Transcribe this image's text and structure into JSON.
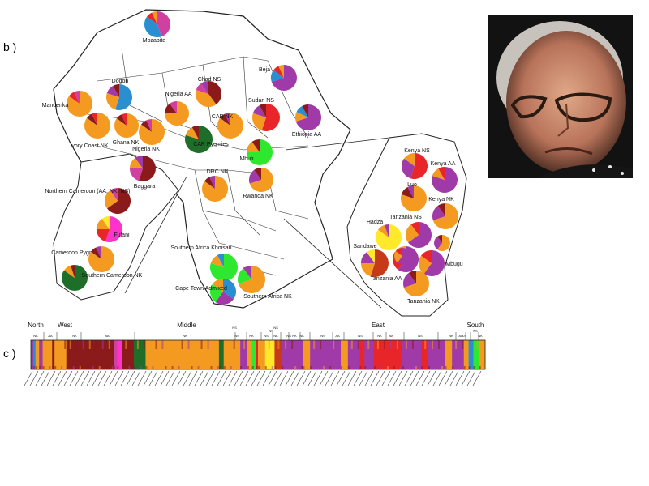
{
  "panel_labels": {
    "b": "b )",
    "c": "c )"
  },
  "pies": [
    {
      "label": "Mozabite",
      "colors": [
        "#d040a0",
        "#2a8fd0",
        "#e8262a",
        "#f49a20"
      ],
      "values": [
        45,
        40,
        8,
        7
      ]
    },
    {
      "label": "Beja",
      "colors": [
        "#a03aa8",
        "#2a8fd0",
        "#e8262a",
        "#f49a20"
      ],
      "values": [
        70,
        15,
        8,
        7
      ]
    },
    {
      "label": "Dogon",
      "colors": [
        "#2a8fd0",
        "#f49a20",
        "#a03aa8",
        "#8b1a1a"
      ],
      "values": [
        55,
        25,
        12,
        8
      ]
    },
    {
      "label": "Chad NS",
      "colors": [
        "#8b1a1a",
        "#f49a20",
        "#d040a0",
        "#a03aa8"
      ],
      "values": [
        40,
        40,
        10,
        10
      ]
    },
    {
      "label": "Mandenka",
      "colors": [
        "#f49a20",
        "#e8262a",
        "#d040a0"
      ],
      "values": [
        85,
        8,
        7
      ]
    },
    {
      "label": "Nigeria AA",
      "colors": [
        "#f49a20",
        "#8b1a1a",
        "#d040a0"
      ],
      "values": [
        75,
        15,
        10
      ]
    },
    {
      "label": "Sudan NS",
      "colors": [
        "#e8262a",
        "#f49a20",
        "#a03aa8",
        "#8b1a1a"
      ],
      "values": [
        55,
        25,
        12,
        8
      ]
    },
    {
      "label": "Ethiopia AA",
      "colors": [
        "#a03aa8",
        "#f49a20",
        "#2a8fd0",
        "#8b1a1a"
      ],
      "values": [
        70,
        12,
        10,
        8
      ]
    },
    {
      "label": "Ghana NK",
      "colors": [
        "#f49a20",
        "#8b1a1a",
        "#e8262a"
      ],
      "values": [
        85,
        8,
        7
      ]
    },
    {
      "label": "Ivory Coast NK",
      "colors": [
        "#f49a20",
        "#8b1a1a",
        "#e8262a"
      ],
      "values": [
        85,
        8,
        7
      ]
    },
    {
      "label": "Nigeria NK",
      "colors": [
        "#f49a20",
        "#8b1a1a",
        "#d040a0"
      ],
      "values": [
        85,
        8,
        7
      ]
    },
    {
      "label": "CAR NK",
      "colors": [
        "#f49a20",
        "#8b1a1a",
        "#a03aa8"
      ],
      "values": [
        85,
        8,
        7
      ]
    },
    {
      "label": "CAR Pygmies",
      "colors": [
        "#1e6e2a",
        "#f49a20",
        "#8b1a1a"
      ],
      "values": [
        80,
        12,
        8
      ]
    },
    {
      "label": "Mbuti",
      "colors": [
        "#2ee82e",
        "#f49a20",
        "#8b1a1a"
      ],
      "values": [
        75,
        15,
        10
      ]
    },
    {
      "label": "Baggara",
      "colors": [
        "#8b1a1a",
        "#d040a0",
        "#f49a20",
        "#a03aa8"
      ],
      "values": [
        55,
        20,
        15,
        10
      ]
    },
    {
      "label": "DRC NK",
      "colors": [
        "#f49a20",
        "#8b1a1a",
        "#a03aa8"
      ],
      "values": [
        85,
        8,
        7
      ]
    },
    {
      "label": "Rwanda NK",
      "colors": [
        "#f49a20",
        "#a03aa8",
        "#8b1a1a"
      ],
      "values": [
        70,
        20,
        10
      ]
    },
    {
      "label": "Northern Cameroon (AA, NK, NS)",
      "colors": [
        "#8b1a1a",
        "#f49a20",
        "#d040a0"
      ],
      "values": [
        65,
        25,
        10
      ]
    },
    {
      "label": "Fulani",
      "colors": [
        "#ff33cc",
        "#e8262a",
        "#f49a20",
        "#ffe92a"
      ],
      "values": [
        55,
        20,
        15,
        10
      ]
    },
    {
      "label": "Cameroon Pygmies",
      "colors": [
        "#1e6e2a",
        "#f49a20",
        "#8b1a1a"
      ],
      "values": [
        85,
        10,
        5
      ]
    },
    {
      "label": "Southern Cameroon NK",
      "colors": [
        "#f49a20",
        "#8b1a1a",
        "#a03aa8"
      ],
      "values": [
        85,
        8,
        7
      ]
    },
    {
      "label": "Southern Africa Khoisan",
      "colors": [
        "#2ee82e",
        "#f49a20",
        "#2a8fd0"
      ],
      "values": [
        80,
        12,
        8
      ]
    },
    {
      "label": "Cape Town Admixed",
      "colors": [
        "#2a8fd0",
        "#a03aa8",
        "#2ee82e",
        "#f49a20"
      ],
      "values": [
        35,
        25,
        25,
        15
      ]
    },
    {
      "label": "Southern Africa NK",
      "colors": [
        "#f49a20",
        "#2ee82e",
        "#a03aa8"
      ],
      "values": [
        70,
        20,
        10
      ]
    },
    {
      "label": "Kenya NS",
      "colors": [
        "#e8262a",
        "#a03aa8",
        "#f49a20"
      ],
      "values": [
        55,
        30,
        15
      ]
    },
    {
      "label": "Kenya AA",
      "colors": [
        "#a03aa8",
        "#f49a20",
        "#e8262a"
      ],
      "values": [
        80,
        12,
        8
      ]
    },
    {
      "label": "Luo",
      "colors": [
        "#f49a20",
        "#8b1a1a",
        "#a03aa8"
      ],
      "values": [
        80,
        12,
        8
      ]
    },
    {
      "label": "Kenya NK",
      "colors": [
        "#f49a20",
        "#a03aa8",
        "#8b1a1a"
      ],
      "values": [
        70,
        20,
        10
      ]
    },
    {
      "label": "Hadza",
      "colors": [
        "#ffe92a",
        "#f49a20",
        "#a03aa8"
      ],
      "values": [
        85,
        10,
        5
      ]
    },
    {
      "label": "Tanzania NS",
      "colors": [
        "#a03aa8",
        "#f49a20",
        "#e8262a"
      ],
      "values": [
        65,
        25,
        10
      ]
    },
    {
      "label": "Sandawe",
      "colors": [
        "#c63a1a",
        "#f49a20",
        "#a03aa8",
        "#ffe92a"
      ],
      "values": [
        55,
        20,
        15,
        10
      ]
    },
    {
      "label": "Tanzania AA",
      "colors": [
        "#a03aa8",
        "#e8262a",
        "#f49a20"
      ],
      "values": [
        60,
        25,
        15
      ]
    },
    {
      "label": "Mbugu",
      "colors": [
        "#a03aa8",
        "#f49a20",
        "#e8262a"
      ],
      "values": [
        60,
        25,
        15
      ]
    },
    {
      "label": "Tanzania NK",
      "colors": [
        "#f49a20",
        "#a03aa8",
        "#8b1a1a"
      ],
      "values": [
        70,
        20,
        10
      ]
    },
    {
      "label": "",
      "colors": [
        "#a03aa8",
        "#f49a20",
        "#e8262a"
      ],
      "values": [
        60,
        25,
        15
      ]
    },
    {
      "label": "",
      "colors": [
        "#f49a20",
        "#a03aa8",
        "#8b1a1a"
      ],
      "values": [
        60,
        30,
        10
      ]
    }
  ],
  "bar_plot": {
    "regions": [
      "North",
      "West",
      "Middle",
      "East",
      "South"
    ],
    "groups": [
      "NK",
      "AA",
      "NK",
      "AA",
      "NK",
      "NS",
      "NK",
      "NS",
      "NK",
      "NS",
      "NK",
      "NK",
      "NS",
      "AA",
      "NS",
      "NK",
      "AA",
      "NS",
      "NK",
      "AA",
      "KS",
      "KS",
      "NK"
    ],
    "stacked": [
      "NS",
      "NS",
      "NS"
    ],
    "segments": [
      {
        "color": "#a03aa8",
        "width": 2
      },
      {
        "color": "#2a8fd0",
        "width": 2
      },
      {
        "color": "#f49a20",
        "width": 3
      },
      {
        "color": "#a03aa8",
        "width": 3
      },
      {
        "color": "#f49a20",
        "width": 8
      },
      {
        "color": "#8b1a1a",
        "width": 2
      },
      {
        "color": "#f49a20",
        "width": 10
      },
      {
        "color": "#8b1a1a",
        "width": 40
      },
      {
        "color": "#d040a0",
        "width": 3
      },
      {
        "color": "#ff33cc",
        "width": 4
      },
      {
        "color": "#8b1a1a",
        "width": 10
      },
      {
        "color": "#1e6e2a",
        "width": 10
      },
      {
        "color": "#f49a20",
        "width": 22
      },
      {
        "color": "#f49a20",
        "width": 40
      },
      {
        "color": "#1e6e2a",
        "width": 4
      },
      {
        "color": "#f49a20",
        "width": 14
      },
      {
        "color": "#a03aa8",
        "width": 6
      },
      {
        "color": "#f49a20",
        "width": 4
      },
      {
        "color": "#2ee82e",
        "width": 3
      },
      {
        "color": "#e8262a",
        "width": 2
      },
      {
        "color": "#f49a20",
        "width": 6
      },
      {
        "color": "#ffe92a",
        "width": 8
      },
      {
        "color": "#c63a1a",
        "width": 6
      },
      {
        "color": "#a03aa8",
        "width": 18
      },
      {
        "color": "#f49a20",
        "width": 6
      },
      {
        "color": "#a03aa8",
        "width": 26
      },
      {
        "color": "#f49a20",
        "width": 6
      },
      {
        "color": "#a03aa8",
        "width": 10
      },
      {
        "color": "#e8262a",
        "width": 4
      },
      {
        "color": "#a03aa8",
        "width": 8
      },
      {
        "color": "#e8262a",
        "width": 24
      },
      {
        "color": "#a03aa8",
        "width": 16
      },
      {
        "color": "#e8262a",
        "width": 6
      },
      {
        "color": "#a03aa8",
        "width": 14
      },
      {
        "color": "#f49a20",
        "width": 6
      },
      {
        "color": "#a03aa8",
        "width": 10
      },
      {
        "color": "#f49a20",
        "width": 4
      },
      {
        "color": "#2a8fd0",
        "width": 4
      },
      {
        "color": "#2ee82e",
        "width": 5
      },
      {
        "color": "#f49a20",
        "width": 5
      }
    ]
  }
}
